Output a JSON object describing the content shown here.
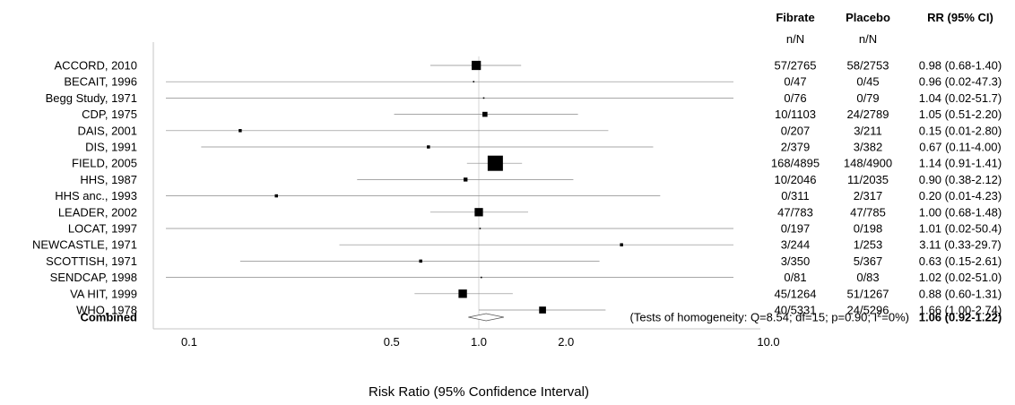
{
  "chart_data": {
    "type": "forest",
    "xlabel": "Risk Ratio  (95% Confidence Interval)",
    "xscale": "log",
    "xticks": [
      {
        "value": 0.1,
        "label": "0.1"
      },
      {
        "value": 0.5,
        "label": "0.5"
      },
      {
        "value": 1.0,
        "label": "1.0"
      },
      {
        "value": 2.0,
        "label": "2.0"
      },
      {
        "value": 10.0,
        "label": "10.0"
      }
    ],
    "columns": {
      "fibrate": "Fibrate",
      "placebo": "Placebo",
      "rr": "RR (95% CI)",
      "fibrate_sub": "n/N",
      "placebo_sub": "n/N"
    },
    "studies": [
      {
        "name": "ACCORD, 2010",
        "rr": 0.98,
        "lo": 0.68,
        "hi": 1.4,
        "fibrate": "57/2765",
        "placebo": "58/2753",
        "rr_text": "0.98 (0.68-1.40)"
      },
      {
        "name": "BECAIT, 1996",
        "rr": 0.96,
        "lo": 0.02,
        "hi": 47.3,
        "fibrate": "0/47",
        "placebo": "0/45",
        "rr_text": "0.96 (0.02-47.3)"
      },
      {
        "name": "Begg Study, 1971",
        "rr": 1.04,
        "lo": 0.02,
        "hi": 51.7,
        "fibrate": "0/76",
        "placebo": "0/79",
        "rr_text": "1.04 (0.02-51.7)"
      },
      {
        "name": "CDP, 1975",
        "rr": 1.05,
        "lo": 0.51,
        "hi": 2.2,
        "fibrate": "10/1103",
        "placebo": "24/2789",
        "rr_text": "1.05 (0.51-2.20)"
      },
      {
        "name": "DAIS, 2001",
        "rr": 0.15,
        "lo": 0.01,
        "hi": 2.8,
        "fibrate": "0/207",
        "placebo": "3/211",
        "rr_text": "0.15 (0.01-2.80)"
      },
      {
        "name": "DIS, 1991",
        "rr": 0.67,
        "lo": 0.11,
        "hi": 4.0,
        "fibrate": "2/379",
        "placebo": "3/382",
        "rr_text": "0.67 (0.11-4.00)"
      },
      {
        "name": "FIELD, 2005",
        "rr": 1.14,
        "lo": 0.91,
        "hi": 1.41,
        "fibrate": "168/4895",
        "placebo": "148/4900",
        "rr_text": "1.14 (0.91-1.41)"
      },
      {
        "name": "HHS, 1987",
        "rr": 0.9,
        "lo": 0.38,
        "hi": 2.12,
        "fibrate": "10/2046",
        "placebo": "11/2035",
        "rr_text": "0.90 (0.38-2.12)"
      },
      {
        "name": "HHS anc., 1993",
        "rr": 0.2,
        "lo": 0.01,
        "hi": 4.23,
        "fibrate": "0/311",
        "placebo": "2/317",
        "rr_text": "0.20 (0.01-4.23)"
      },
      {
        "name": "LEADER, 2002",
        "rr": 1.0,
        "lo": 0.68,
        "hi": 1.48,
        "fibrate": "47/783",
        "placebo": "47/785",
        "rr_text": "1.00 (0.68-1.48)"
      },
      {
        "name": "LOCAT, 1997",
        "rr": 1.01,
        "lo": 0.02,
        "hi": 50.4,
        "fibrate": "0/197",
        "placebo": "0/198",
        "rr_text": "1.01 (0.02-50.4)"
      },
      {
        "name": "NEWCASTLE, 1971",
        "rr": 3.11,
        "lo": 0.33,
        "hi": 29.7,
        "fibrate": "3/244",
        "placebo": "1/253",
        "rr_text": "3.11 (0.33-29.7)"
      },
      {
        "name": "SCOTTISH, 1971",
        "rr": 0.63,
        "lo": 0.15,
        "hi": 2.61,
        "fibrate": "3/350",
        "placebo": "5/367",
        "rr_text": "0.63 (0.15-2.61)"
      },
      {
        "name": "SENDCAP, 1998",
        "rr": 1.02,
        "lo": 0.02,
        "hi": 51.0,
        "fibrate": "0/81",
        "placebo": "0/83",
        "rr_text": "1.02 (0.02-51.0)"
      },
      {
        "name": "VA HIT, 1999",
        "rr": 0.88,
        "lo": 0.6,
        "hi": 1.31,
        "fibrate": "45/1264",
        "placebo": "51/1267",
        "rr_text": "0.88 (0.60-1.31)"
      },
      {
        "name": "WHO, 1978",
        "rr": 1.66,
        "lo": 1.0,
        "hi": 2.74,
        "fibrate": "40/5331",
        "placebo": "24/5296",
        "rr_text": "1.66 (1.00-2.74)"
      }
    ],
    "combined": {
      "name": "Combined",
      "rr": 1.06,
      "lo": 0.92,
      "hi": 1.22,
      "rr_text": "1.06 (0.92-1.22)",
      "heterogeneity_prefix": "(Tests of homogeneity: Q=8.54; df=15; p=0.90; I",
      "heterogeneity_sup": "2",
      "heterogeneity_suffix": "=0%)"
    }
  }
}
